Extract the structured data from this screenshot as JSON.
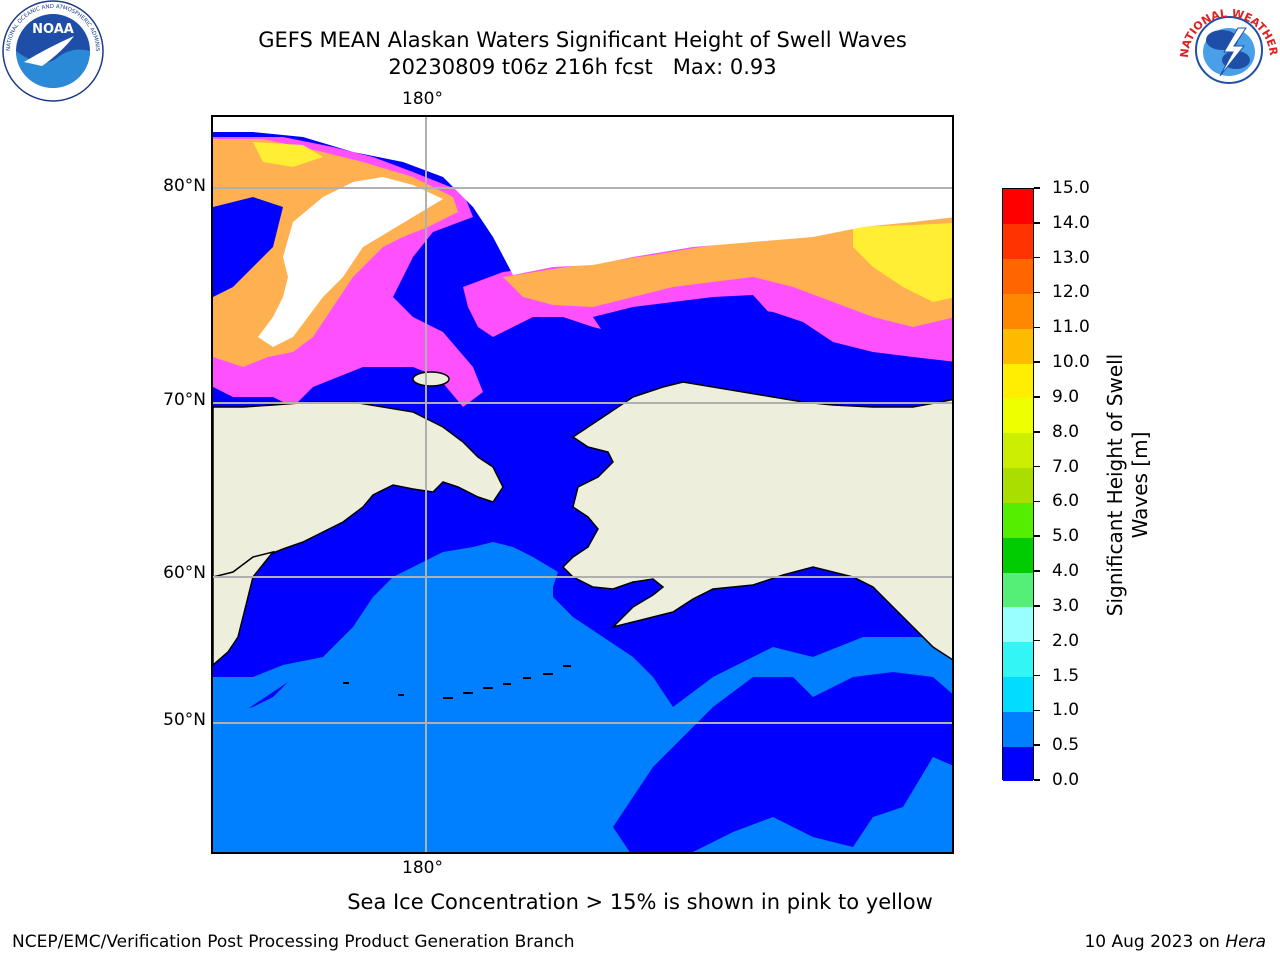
{
  "title_line1": "GEFS MEAN Alaskan Waters Significant Height of Swell Waves",
  "title_line2": "20230809 t06z 216h fcst   Max: 0.93",
  "logos": {
    "left": {
      "name": "noaa-logo",
      "text": "NOAA",
      "ring_text": "NATIONAL OCEANIC AND ATMOSPHERIC ADMINISTRATION · U.S. DEPARTMENT OF COMMERCE"
    },
    "right": {
      "name": "nws-logo",
      "ring_text": "NATIONAL WEATHER SERVICE"
    }
  },
  "map": {
    "lon_labels": {
      "top": "180°",
      "bottom": "180°"
    },
    "lat_labels": [
      "80°N",
      "70°N",
      "60°N",
      "50°N"
    ],
    "colors": {
      "ocean_low": "#0000ff",
      "ocean_mid": "#0080ff",
      "land": "#eeeedd",
      "coast": "#000000",
      "grid": "#b0b0b0",
      "ice_pink": "#ff50ff",
      "ice_orange": "#ffb050",
      "ice_yellow": "#ffee33"
    }
  },
  "colorbar": {
    "label": "Significant Height of Swell Waves [m]",
    "label_line1": "Significant Height of Swell",
    "label_line2": "Waves [m]",
    "ticks": [
      "0.0",
      "0.5",
      "1.0",
      "1.5",
      "2.0",
      "3.0",
      "4.0",
      "5.0",
      "6.0",
      "7.0",
      "8.0",
      "9.0",
      "10.0",
      "11.0",
      "12.0",
      "13.0",
      "14.0",
      "15.0"
    ],
    "colors": [
      "#0000ff",
      "#0080ff",
      "#00ddff",
      "#33f5f5",
      "#99ffff",
      "#55ee77",
      "#00cc00",
      "#55ee00",
      "#aadd00",
      "#ccee00",
      "#eeff00",
      "#ffee00",
      "#ffbb00",
      "#ff8800",
      "#ff6600",
      "#ff3300",
      "#ff0000"
    ]
  },
  "note": "Sea Ice Concentration > 15% is shown in pink to yellow",
  "footer": {
    "left": "NCEP/EMC/Verification Post Processing Product Generation Branch",
    "right_date": "10 Aug 2023 on ",
    "right_host": "Hera"
  }
}
